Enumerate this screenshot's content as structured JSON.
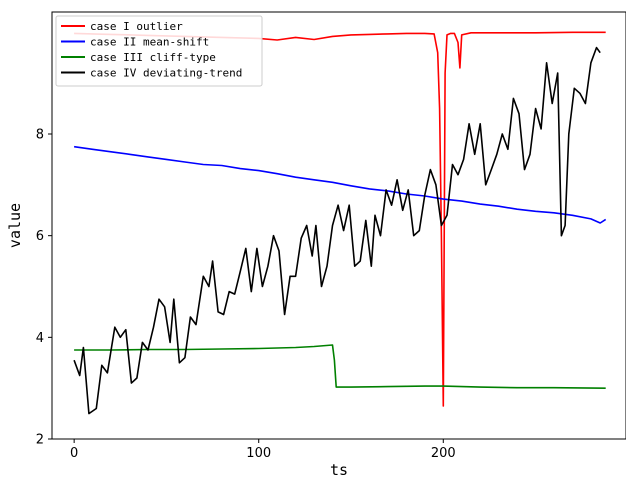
{
  "chart_data": {
    "type": "line",
    "title": "",
    "xlabel": "ts",
    "ylabel": "value",
    "xlim": [
      -12,
      299
    ],
    "ylim": [
      2,
      10.4
    ],
    "xticks": [
      0,
      100,
      200
    ],
    "yticks": [
      2,
      4,
      6,
      8
    ],
    "xtick_labels": [
      "0",
      "100",
      "200"
    ],
    "ytick_labels": [
      "2",
      "4",
      "6",
      "8"
    ],
    "legend_position": "top-left",
    "grid": false,
    "series": [
      {
        "name": "case I outlier",
        "color": "#ff0000",
        "points": [
          [
            0,
            9.98
          ],
          [
            20,
            9.96
          ],
          [
            40,
            9.94
          ],
          [
            60,
            9.92
          ],
          [
            80,
            9.9
          ],
          [
            100,
            9.88
          ],
          [
            110,
            9.85
          ],
          [
            120,
            9.9
          ],
          [
            130,
            9.86
          ],
          [
            140,
            9.92
          ],
          [
            150,
            9.95
          ],
          [
            160,
            9.96
          ],
          [
            170,
            9.97
          ],
          [
            180,
            9.98
          ],
          [
            190,
            9.98
          ],
          [
            195,
            9.97
          ],
          [
            197,
            9.6
          ],
          [
            198,
            8.5
          ],
          [
            199,
            6.0
          ],
          [
            200,
            2.65
          ],
          [
            201,
            9.2
          ],
          [
            202,
            9.95
          ],
          [
            204,
            9.98
          ],
          [
            206,
            9.98
          ],
          [
            208,
            9.8
          ],
          [
            209,
            9.3
          ],
          [
            210,
            9.95
          ],
          [
            215,
            9.99
          ],
          [
            230,
            9.99
          ],
          [
            250,
            9.99
          ],
          [
            270,
            10.0
          ],
          [
            288,
            10.0
          ]
        ]
      },
      {
        "name": "case II mean-shift",
        "color": "#0000ff",
        "points": [
          [
            0,
            7.75
          ],
          [
            10,
            7.7
          ],
          [
            20,
            7.65
          ],
          [
            30,
            7.6
          ],
          [
            40,
            7.55
          ],
          [
            50,
            7.5
          ],
          [
            60,
            7.45
          ],
          [
            70,
            7.4
          ],
          [
            80,
            7.38
          ],
          [
            90,
            7.32
          ],
          [
            100,
            7.28
          ],
          [
            110,
            7.22
          ],
          [
            120,
            7.15
          ],
          [
            130,
            7.1
          ],
          [
            140,
            7.05
          ],
          [
            150,
            6.98
          ],
          [
            160,
            6.92
          ],
          [
            170,
            6.88
          ],
          [
            180,
            6.82
          ],
          [
            190,
            6.78
          ],
          [
            200,
            6.72
          ],
          [
            210,
            6.68
          ],
          [
            220,
            6.62
          ],
          [
            230,
            6.58
          ],
          [
            240,
            6.52
          ],
          [
            250,
            6.48
          ],
          [
            260,
            6.45
          ],
          [
            270,
            6.4
          ],
          [
            280,
            6.33
          ],
          [
            285,
            6.25
          ],
          [
            288,
            6.32
          ]
        ]
      },
      {
        "name": "case III cliff-type",
        "color": "#008000",
        "points": [
          [
            0,
            3.75
          ],
          [
            20,
            3.75
          ],
          [
            40,
            3.76
          ],
          [
            60,
            3.76
          ],
          [
            80,
            3.77
          ],
          [
            100,
            3.78
          ],
          [
            120,
            3.8
          ],
          [
            130,
            3.82
          ],
          [
            140,
            3.85
          ],
          [
            141,
            3.55
          ],
          [
            142,
            3.02
          ],
          [
            150,
            3.02
          ],
          [
            170,
            3.03
          ],
          [
            190,
            3.04
          ],
          [
            200,
            3.04
          ],
          [
            220,
            3.02
          ],
          [
            240,
            3.01
          ],
          [
            260,
            3.01
          ],
          [
            288,
            3.0
          ]
        ]
      },
      {
        "name": "case IV deviating-trend",
        "color": "#000000",
        "points": [
          [
            0,
            3.55
          ],
          [
            3,
            3.25
          ],
          [
            5,
            3.8
          ],
          [
            8,
            2.5
          ],
          [
            12,
            2.6
          ],
          [
            15,
            3.45
          ],
          [
            18,
            3.3
          ],
          [
            22,
            4.2
          ],
          [
            25,
            4.0
          ],
          [
            28,
            4.15
          ],
          [
            31,
            3.1
          ],
          [
            34,
            3.2
          ],
          [
            37,
            3.9
          ],
          [
            40,
            3.75
          ],
          [
            43,
            4.2
          ],
          [
            46,
            4.75
          ],
          [
            49,
            4.6
          ],
          [
            52,
            3.9
          ],
          [
            54,
            4.75
          ],
          [
            57,
            3.5
          ],
          [
            60,
            3.6
          ],
          [
            63,
            4.4
          ],
          [
            66,
            4.25
          ],
          [
            70,
            5.2
          ],
          [
            73,
            5.0
          ],
          [
            75,
            5.5
          ],
          [
            78,
            4.5
          ],
          [
            81,
            4.45
          ],
          [
            84,
            4.9
          ],
          [
            87,
            4.85
          ],
          [
            90,
            5.3
          ],
          [
            93,
            5.75
          ],
          [
            96,
            4.9
          ],
          [
            99,
            5.75
          ],
          [
            102,
            5.0
          ],
          [
            105,
            5.4
          ],
          [
            108,
            6.0
          ],
          [
            111,
            5.7
          ],
          [
            114,
            4.45
          ],
          [
            117,
            5.2
          ],
          [
            120,
            5.2
          ],
          [
            123,
            5.95
          ],
          [
            126,
            6.2
          ],
          [
            129,
            5.6
          ],
          [
            131,
            6.2
          ],
          [
            134,
            5.0
          ],
          [
            137,
            5.4
          ],
          [
            140,
            6.2
          ],
          [
            143,
            6.6
          ],
          [
            146,
            6.1
          ],
          [
            149,
            6.6
          ],
          [
            152,
            5.4
          ],
          [
            155,
            5.5
          ],
          [
            158,
            6.3
          ],
          [
            161,
            5.4
          ],
          [
            163,
            6.4
          ],
          [
            166,
            6.0
          ],
          [
            169,
            6.9
          ],
          [
            172,
            6.6
          ],
          [
            175,
            7.1
          ],
          [
            178,
            6.5
          ],
          [
            181,
            6.9
          ],
          [
            184,
            6.0
          ],
          [
            187,
            6.1
          ],
          [
            190,
            6.8
          ],
          [
            193,
            7.3
          ],
          [
            196,
            7.0
          ],
          [
            199,
            6.2
          ],
          [
            202,
            6.4
          ],
          [
            205,
            7.4
          ],
          [
            208,
            7.2
          ],
          [
            211,
            7.5
          ],
          [
            214,
            8.2
          ],
          [
            217,
            7.6
          ],
          [
            220,
            8.2
          ],
          [
            223,
            7.0
          ],
          [
            226,
            7.3
          ],
          [
            229,
            7.6
          ],
          [
            232,
            8.0
          ],
          [
            235,
            7.7
          ],
          [
            238,
            8.7
          ],
          [
            241,
            8.4
          ],
          [
            244,
            7.3
          ],
          [
            247,
            7.6
          ],
          [
            250,
            8.5
          ],
          [
            253,
            8.1
          ],
          [
            256,
            9.4
          ],
          [
            259,
            8.6
          ],
          [
            262,
            9.2
          ],
          [
            264,
            6.0
          ],
          [
            266,
            6.2
          ],
          [
            268,
            8.0
          ],
          [
            271,
            8.9
          ],
          [
            274,
            8.8
          ],
          [
            277,
            8.6
          ],
          [
            280,
            9.4
          ],
          [
            283,
            9.7
          ],
          [
            285,
            9.6
          ]
        ]
      }
    ]
  }
}
